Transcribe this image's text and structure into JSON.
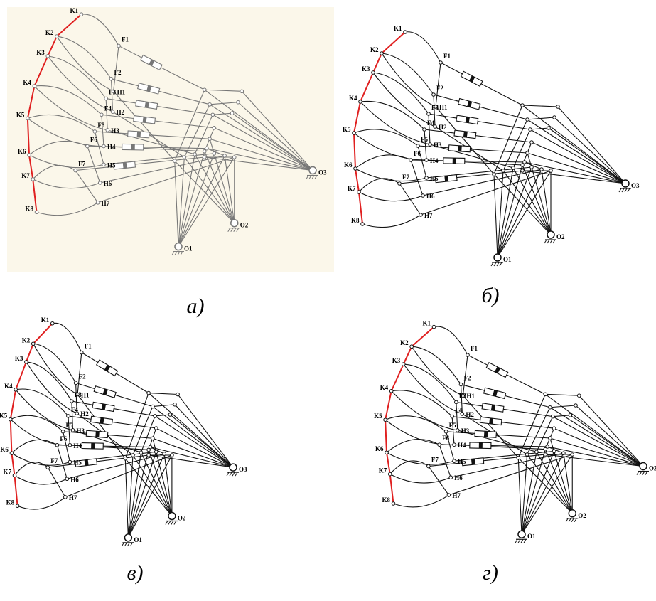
{
  "panels": [
    {
      "caption": "а)",
      "point_labels": [
        "K1",
        "K2",
        "K3",
        "K4",
        "K5",
        "K6",
        "K7",
        "K8",
        "F1",
        "F2",
        "F3",
        "F4",
        "F5",
        "F6",
        "F7",
        "H1",
        "H2",
        "H3",
        "H4",
        "H5",
        "H6",
        "H7",
        "O1",
        "O2",
        "O3"
      ]
    },
    {
      "caption": "б)",
      "point_labels": [
        "K1",
        "K2",
        "K3",
        "K4",
        "K5",
        "K6",
        "K7",
        "K8",
        "F1",
        "F2",
        "F3",
        "F4",
        "F5",
        "F6",
        "F7",
        "H1",
        "H2",
        "H3",
        "H4",
        "H5",
        "H6",
        "H7",
        "O1",
        "O2",
        "O3"
      ]
    },
    {
      "caption": "в)",
      "point_labels": [
        "K1",
        "K2",
        "K3",
        "K4",
        "K5",
        "K6",
        "K7",
        "K8",
        "F1",
        "F2",
        "F3",
        "F4",
        "F5",
        "F6",
        "F7",
        "H1",
        "H2",
        "H3",
        "H4",
        "H5",
        "H6",
        "H7",
        "O1",
        "O2",
        "O3"
      ]
    },
    {
      "caption": "г)",
      "point_labels": [
        "K1",
        "K2",
        "K3",
        "K4",
        "K5",
        "K6",
        "K7",
        "K8",
        "F1",
        "F2",
        "F3",
        "F4",
        "F5",
        "F6",
        "F7",
        "H1",
        "H2",
        "H3",
        "H4",
        "H5",
        "H6",
        "H7",
        "O1",
        "O2",
        "O3"
      ]
    }
  ]
}
